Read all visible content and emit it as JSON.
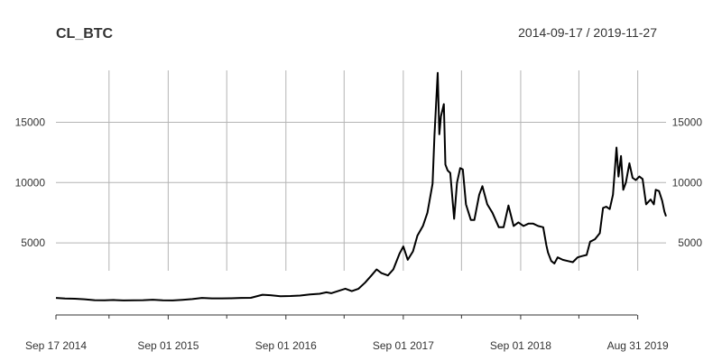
{
  "chart_data": {
    "type": "line",
    "title": "CL_BTC",
    "date_range": "2014-09-17 / 2019-11-27",
    "xlabel": "",
    "ylabel": "",
    "x_ticks": [
      "Sep 17 2014",
      "Sep 01 2015",
      "Sep 01 2016",
      "Sep 01 2017",
      "Sep 01 2018",
      "Aug 31 2019"
    ],
    "x_tick_dates": [
      "2014-09-17",
      "2015-09-01",
      "2016-09-01",
      "2017-09-01",
      "2018-09-01",
      "2019-08-31"
    ],
    "x_minor_tick_dates": [
      "2015-03-01",
      "2016-03-01",
      "2017-03-01",
      "2018-03-01",
      "2019-03-01"
    ],
    "y_ticks": [
      5000,
      10000,
      15000
    ],
    "ylim": [
      -900,
      19300
    ],
    "xlim": [
      "2014-09-17",
      "2019-11-27"
    ],
    "grid": true,
    "line_color": "#000000",
    "grid_color": "#b4b4b4",
    "series": [
      {
        "x": [
          "2014-09-17",
          "2014-10-15",
          "2014-11-15",
          "2014-12-15",
          "2015-01-15",
          "2015-02-15",
          "2015-03-15",
          "2015-04-15",
          "2015-05-15",
          "2015-06-15",
          "2015-07-15",
          "2015-08-15",
          "2015-09-15",
          "2015-10-15",
          "2015-11-15",
          "2015-12-15",
          "2016-01-15",
          "2016-02-15",
          "2016-03-15",
          "2016-04-15",
          "2016-05-15",
          "2016-06-20",
          "2016-07-15",
          "2016-08-15",
          "2016-09-15",
          "2016-10-15",
          "2016-11-15",
          "2016-12-15",
          "2017-01-05",
          "2017-01-20",
          "2017-02-15",
          "2017-03-05",
          "2017-03-25",
          "2017-04-15",
          "2017-05-05",
          "2017-05-25",
          "2017-06-10",
          "2017-06-25",
          "2017-07-15",
          "2017-08-01",
          "2017-08-20",
          "2017-09-01",
          "2017-09-15",
          "2017-10-01",
          "2017-10-15",
          "2017-11-01",
          "2017-11-15",
          "2017-12-01",
          "2017-12-07",
          "2017-12-12",
          "2017-12-17",
          "2017-12-22",
          "2017-12-27",
          "2018-01-05",
          "2018-01-10",
          "2018-01-17",
          "2018-01-25",
          "2018-02-06",
          "2018-02-15",
          "2018-02-25",
          "2018-03-05",
          "2018-03-15",
          "2018-03-30",
          "2018-04-10",
          "2018-04-25",
          "2018-05-05",
          "2018-05-20",
          "2018-06-05",
          "2018-06-25",
          "2018-07-10",
          "2018-07-25",
          "2018-08-10",
          "2018-08-25",
          "2018-09-10",
          "2018-09-25",
          "2018-10-10",
          "2018-10-25",
          "2018-11-10",
          "2018-11-20",
          "2018-11-25",
          "2018-12-05",
          "2018-12-15",
          "2018-12-25",
          "2019-01-10",
          "2019-01-25",
          "2019-02-10",
          "2019-02-25",
          "2019-03-10",
          "2019-03-25",
          "2019-04-05",
          "2019-04-20",
          "2019-05-05",
          "2019-05-15",
          "2019-05-25",
          "2019-06-05",
          "2019-06-15",
          "2019-06-26",
          "2019-07-02",
          "2019-07-10",
          "2019-07-17",
          "2019-07-25",
          "2019-08-05",
          "2019-08-15",
          "2019-08-25",
          "2019-09-05",
          "2019-09-15",
          "2019-09-26",
          "2019-10-10",
          "2019-10-20",
          "2019-10-26",
          "2019-11-05",
          "2019-11-15",
          "2019-11-22",
          "2019-11-27"
        ],
        "y": [
          440,
          390,
          370,
          330,
          250,
          240,
          270,
          230,
          240,
          250,
          290,
          240,
          230,
          280,
          340,
          440,
          400,
          400,
          410,
          440,
          450,
          700,
          660,
          580,
          600,
          630,
          720,
          780,
          900,
          830,
          1050,
          1200,
          1000,
          1200,
          1700,
          2300,
          2800,
          2500,
          2300,
          2800,
          4100,
          4700,
          3600,
          4300,
          5600,
          6400,
          7500,
          9900,
          13900,
          16500,
          19100,
          14000,
          15500,
          16500,
          11500,
          11000,
          10800,
          7000,
          10000,
          11200,
          11100,
          8200,
          6900,
          6900,
          9000,
          9700,
          8200,
          7500,
          6300,
          6300,
          8100,
          6400,
          6700,
          6400,
          6600,
          6600,
          6400,
          6300,
          4800,
          4200,
          3500,
          3300,
          3800,
          3600,
          3500,
          3400,
          3800,
          3900,
          4000,
          5100,
          5300,
          5800,
          7900,
          8000,
          7800,
          9000,
          12900,
          10500,
          12200,
          9400,
          10000,
          11600,
          10400,
          10200,
          10500,
          10300,
          8200,
          8600,
          8200,
          9400,
          9300,
          8500,
          7600,
          7200
        ]
      }
    ]
  }
}
